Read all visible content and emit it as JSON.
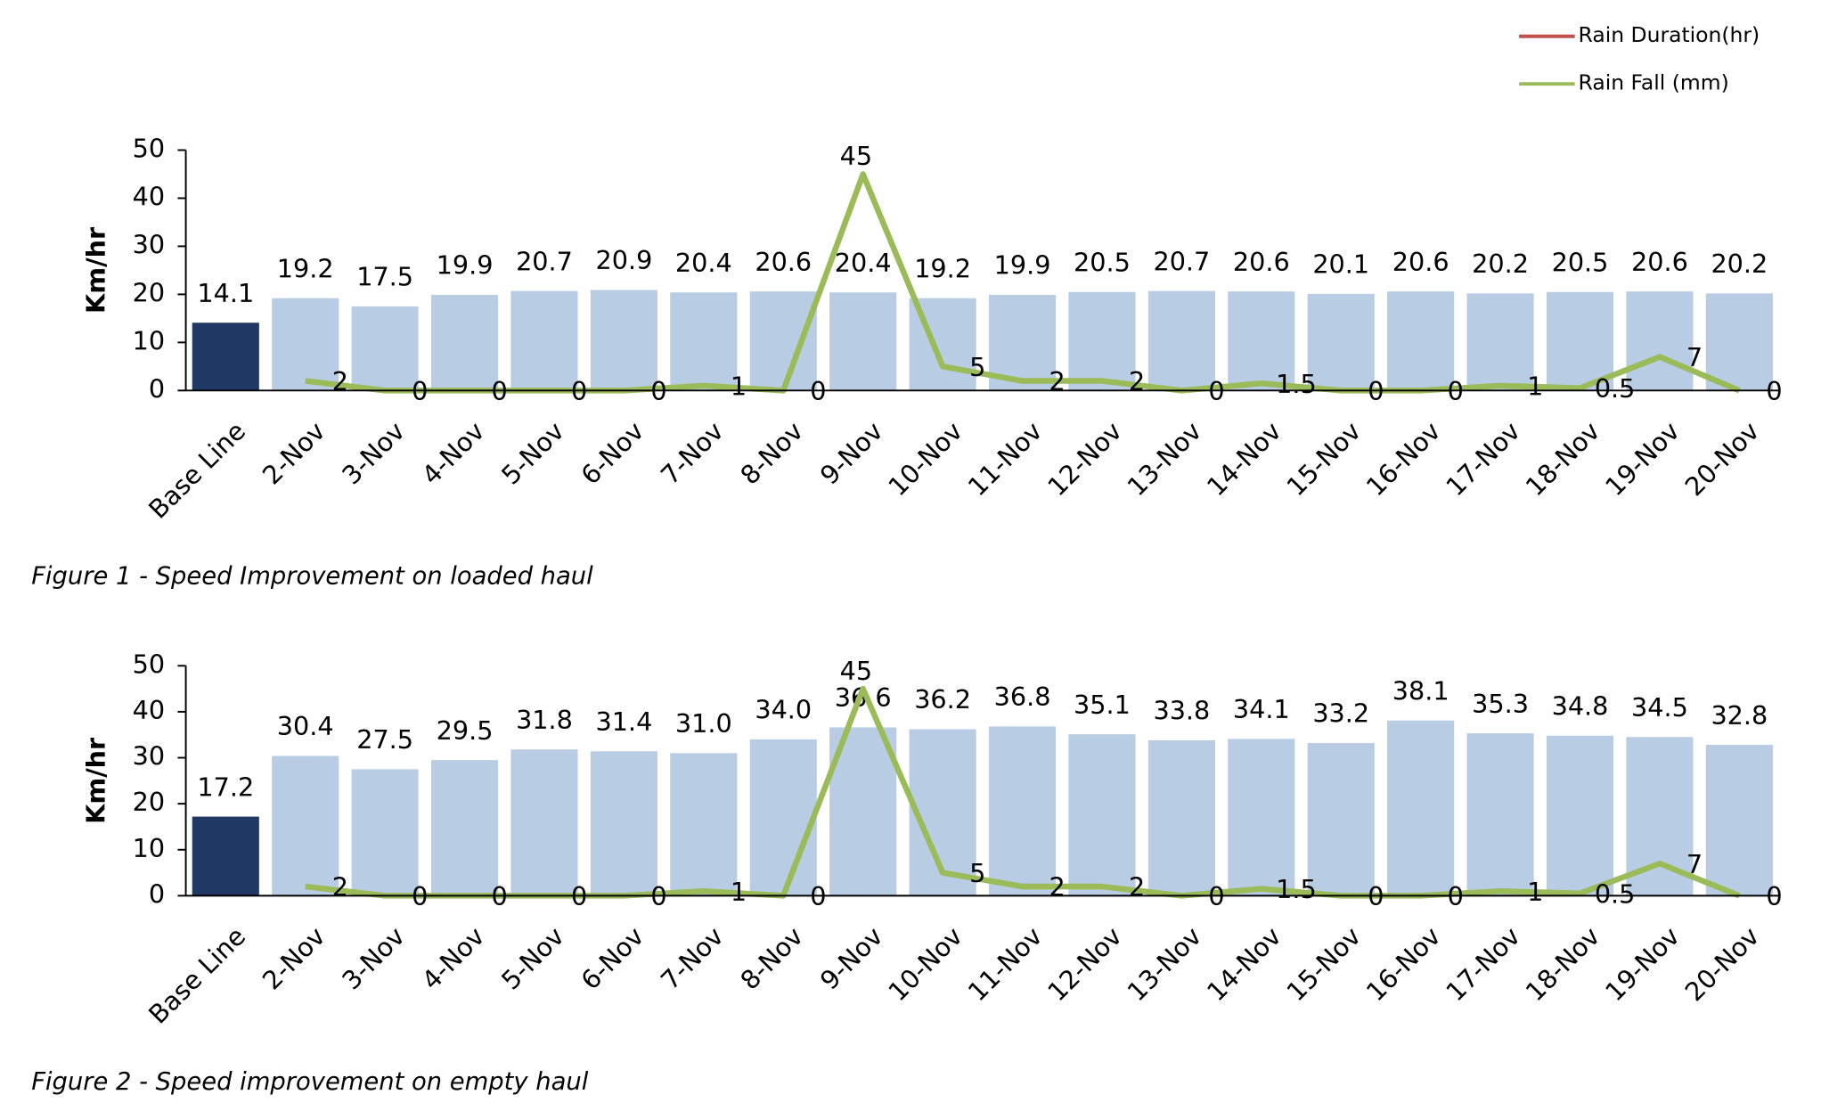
{
  "legend": [
    {
      "name": "Rain Duration(hr)",
      "color": "#c0504d"
    },
    {
      "name": "Rain Fall (mm)",
      "color": "#9bbb59"
    }
  ],
  "chart_data": [
    {
      "type": "bar_line",
      "caption": "Figure 1 - Speed Improvement on loaded haul",
      "y_label": "Km/hr",
      "categories": [
        "Base Line",
        "2-Nov",
        "3-Nov",
        "4-Nov",
        "5-Nov",
        "6-Nov",
        "7-Nov",
        "8-Nov",
        "9-Nov",
        "10-Nov",
        "11-Nov",
        "12-Nov",
        "13-Nov",
        "14-Nov",
        "15-Nov",
        "16-Nov",
        "17-Nov",
        "18-Nov",
        "19-Nov",
        "20-Nov"
      ],
      "ylim": [
        0,
        50
      ],
      "yticks": [
        0,
        10,
        20,
        30,
        40,
        50
      ],
      "series": [
        {
          "kind": "bar",
          "colors": [
            "#1f3864",
            "#b8cce4",
            "#b8cce4",
            "#b8cce4",
            "#b8cce4",
            "#b8cce4",
            "#b8cce4",
            "#b8cce4",
            "#b8cce4",
            "#b8cce4",
            "#b8cce4",
            "#b8cce4",
            "#b8cce4",
            "#b8cce4",
            "#b8cce4",
            "#b8cce4",
            "#b8cce4",
            "#b8cce4",
            "#b8cce4",
            "#b8cce4"
          ],
          "values": [
            14.1,
            19.2,
            17.5,
            19.9,
            20.7,
            20.9,
            20.4,
            20.6,
            20.4,
            19.2,
            19.9,
            20.5,
            20.7,
            20.6,
            20.1,
            20.6,
            20.2,
            20.5,
            20.6,
            20.2
          ]
        },
        {
          "kind": "line",
          "name": "Rain Fall (mm)",
          "color": "#9bbb59",
          "values": [
            null,
            2,
            0,
            0,
            0,
            0,
            1,
            0,
            45,
            5,
            2,
            2,
            0,
            1.5,
            0,
            0,
            1,
            0.5,
            7,
            0
          ]
        }
      ]
    },
    {
      "type": "bar_line",
      "caption": "Figure 2 - Speed improvement on empty haul",
      "y_label": "Km/hr",
      "categories": [
        "Base Line",
        "2-Nov",
        "3-Nov",
        "4-Nov",
        "5-Nov",
        "6-Nov",
        "7-Nov",
        "8-Nov",
        "9-Nov",
        "10-Nov",
        "11-Nov",
        "12-Nov",
        "13-Nov",
        "14-Nov",
        "15-Nov",
        "16-Nov",
        "17-Nov",
        "18-Nov",
        "19-Nov",
        "20-Nov"
      ],
      "ylim": [
        0,
        50
      ],
      "yticks": [
        0,
        10,
        20,
        30,
        40,
        50
      ],
      "series": [
        {
          "kind": "bar",
          "colors": [
            "#1f3864",
            "#b8cce4",
            "#b8cce4",
            "#b8cce4",
            "#b8cce4",
            "#b8cce4",
            "#b8cce4",
            "#b8cce4",
            "#b8cce4",
            "#b8cce4",
            "#b8cce4",
            "#b8cce4",
            "#b8cce4",
            "#b8cce4",
            "#b8cce4",
            "#b8cce4",
            "#b8cce4",
            "#b8cce4",
            "#b8cce4",
            "#b8cce4"
          ],
          "values": [
            17.2,
            30.4,
            27.5,
            29.5,
            31.8,
            31.4,
            31.0,
            34.0,
            36.6,
            36.2,
            36.8,
            35.1,
            33.8,
            34.1,
            33.2,
            38.1,
            35.3,
            34.8,
            34.5,
            32.8
          ],
          "value_labels": [
            "17.2",
            "30.4",
            "27.5",
            "29.5",
            "31.8",
            "31.4",
            "31.0",
            "34.0",
            "36.6",
            "36.2",
            "36.8",
            "35.1",
            "33.8",
            "34.1",
            "33.2",
            "38.1",
            "35.3",
            "34.8",
            "34.5",
            "32.8"
          ]
        },
        {
          "kind": "line",
          "name": "Rain Fall (mm)",
          "color": "#9bbb59",
          "values": [
            null,
            2,
            0,
            0,
            0,
            0,
            1,
            0,
            45,
            5,
            2,
            2,
            0,
            1.5,
            0,
            0,
            1,
            0.5,
            7,
            0
          ]
        }
      ]
    }
  ]
}
